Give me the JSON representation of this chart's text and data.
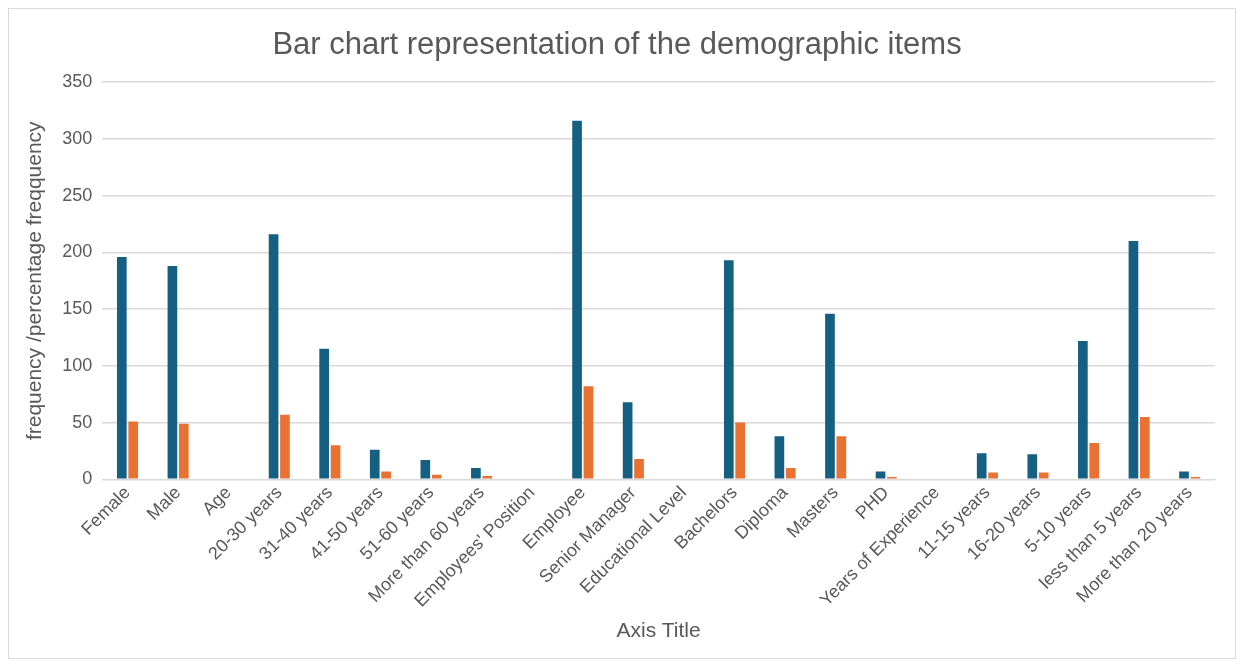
{
  "chart_data": {
    "type": "bar",
    "title": "Bar chart representation of the demographic items",
    "xlabel": "Axis Title",
    "ylabel": "frequency /percentage freqquency",
    "categories": [
      "Female",
      "Male",
      "Age",
      "20-30 years",
      "31-40 years",
      "41-50 years",
      "51-60 years",
      "More than 60 years",
      "Employees' Position",
      "Employee",
      "Senior Manager",
      "Educational Level",
      "Bachelors",
      "Diploma",
      "Masters",
      "PHD",
      "Years of Experience",
      "11-15 years",
      "16-20 years",
      "5-10 years",
      "less than 5 years",
      "More than 20 years"
    ],
    "series": [
      {
        "color": "#156082",
        "values": [
          196,
          188,
          null,
          216,
          115,
          26,
          17,
          10,
          null,
          316,
          68,
          null,
          193,
          38,
          146,
          7,
          null,
          23,
          22,
          122,
          210,
          7
        ]
      },
      {
        "color": "#e97132",
        "values": [
          51,
          49,
          null,
          57,
          30,
          7,
          4,
          3,
          null,
          82,
          18,
          null,
          50,
          10,
          38,
          2,
          null,
          6,
          6,
          32,
          55,
          2
        ]
      }
    ],
    "ylim": [
      0,
      350
    ],
    "yticks": [
      0,
      50,
      100,
      150,
      200,
      250,
      300,
      350
    ],
    "grid": "y",
    "legend": false
  }
}
